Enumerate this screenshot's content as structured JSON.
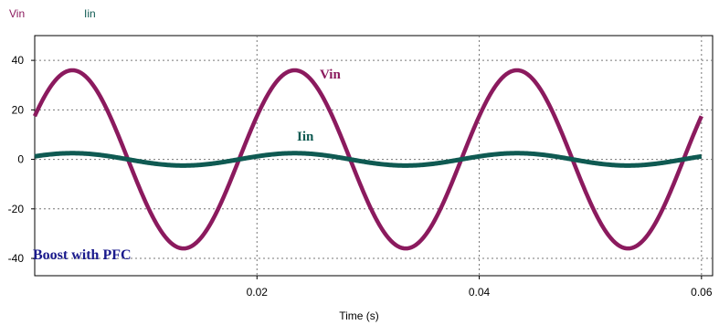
{
  "chart_data": {
    "type": "line",
    "title": "",
    "xlabel": "Time (s)",
    "ylabel": "",
    "xlim": [
      0,
      0.061
    ],
    "ylim": [
      -47,
      50
    ],
    "grid": true,
    "legend_position": "top-left",
    "x_ticks": [
      0.02,
      0.04,
      0.06
    ],
    "x_tick_labels": [
      "0.02",
      "0.04",
      "0.06"
    ],
    "y_ticks": [
      40,
      20,
      0,
      -20,
      -40
    ],
    "y_tick_labels": [
      "40",
      "20",
      "0",
      "-20",
      "-40"
    ],
    "series": [
      {
        "name": "Vin",
        "color": "#8b1a5e",
        "function": "sine",
        "amplitude": 36,
        "frequency_hz": 50,
        "phase_deg": 29,
        "x_start": 0,
        "x_end": 0.06
      },
      {
        "name": "Iin",
        "color": "#0f5a52",
        "function": "sine",
        "amplitude": 2.5,
        "frequency_hz": 50,
        "phase_deg": 29,
        "x_start": 0,
        "x_end": 0.06
      }
    ],
    "annotations": [
      {
        "text": "Vin",
        "x": 0.0258,
        "y": 32,
        "color": "#8b1a5e"
      },
      {
        "text": "Iin",
        "x": 0.0248,
        "y": 7,
        "color": "#0f5a52"
      },
      {
        "text": "Boost with PFC",
        "x": -0.0005,
        "y": -38,
        "color": "#1a1a8c"
      }
    ]
  }
}
